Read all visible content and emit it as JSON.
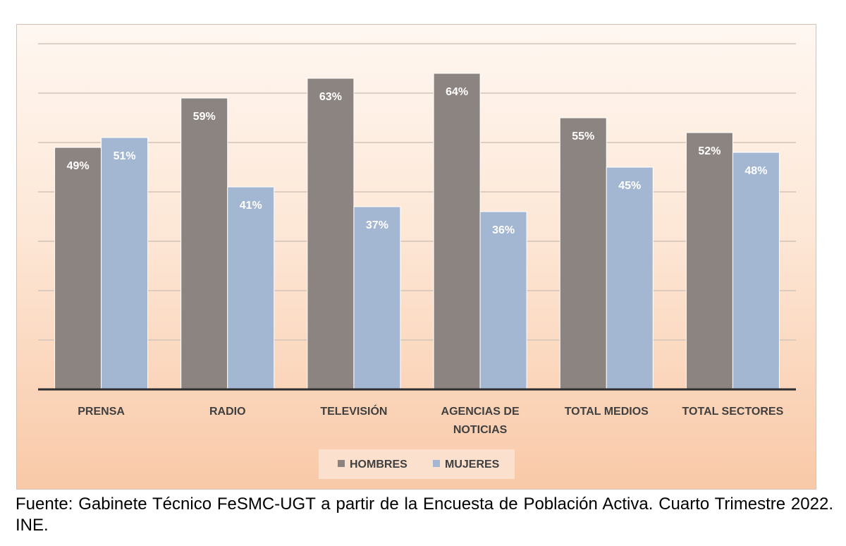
{
  "chart_data": {
    "type": "bar",
    "categories": [
      [
        "PRENSA"
      ],
      [
        "RADIO"
      ],
      [
        "TELEVISIÓN"
      ],
      [
        "AGENCIAS DE",
        "NOTICIAS"
      ],
      [
        "TOTAL MEDIOS"
      ],
      [
        "TOTAL SECTORES"
      ]
    ],
    "series": [
      {
        "name": "HOMBRES",
        "color": "#8c8480",
        "values": [
          49,
          59,
          63,
          64,
          55,
          52
        ],
        "labels": [
          "49%",
          "59%",
          "63%",
          "64%",
          "55%",
          "52%"
        ]
      },
      {
        "name": "MUJERES",
        "color": "#a3b6d2",
        "values": [
          51,
          41,
          37,
          36,
          45,
          48
        ],
        "labels": [
          "51%",
          "41%",
          "37%",
          "36%",
          "45%",
          "48%"
        ]
      }
    ],
    "ylim": [
      0,
      70
    ],
    "grid": true,
    "legend_position": "bottom"
  },
  "source_text": "Fuente: Gabinete Técnico FeSMC-UGT a partir de la Encuesta de Población Activa. Cuarto Trimestre 2022. INE."
}
